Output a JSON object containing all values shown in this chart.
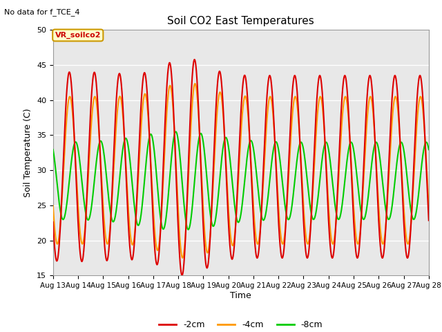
{
  "title": "Soil CO2 East Temperatures",
  "subtitle": "No data for f_TCE_4",
  "ylabel": "Soil Temperature (C)",
  "xlabel": "Time",
  "annotation": "VR_soilco2",
  "ylim": [
    15,
    50
  ],
  "colors": [
    "#dd0000",
    "#ff9900",
    "#00cc00"
  ],
  "legend_labels": [
    "-2cm",
    "-4cm",
    "-8cm"
  ],
  "line_width": 1.5,
  "bg_color": "#e8e8e8",
  "grid_color": "#ffffff",
  "x_tick_labels": [
    "Aug 13",
    "Aug 14",
    "Aug 15",
    "Aug 16",
    "Aug 17",
    "Aug 18",
    "Aug 19",
    "Aug 20",
    "Aug 21",
    "Aug 22",
    "Aug 23",
    "Aug 24",
    "Aug 25",
    "Aug 26",
    "Aug 27",
    "Aug 28"
  ]
}
